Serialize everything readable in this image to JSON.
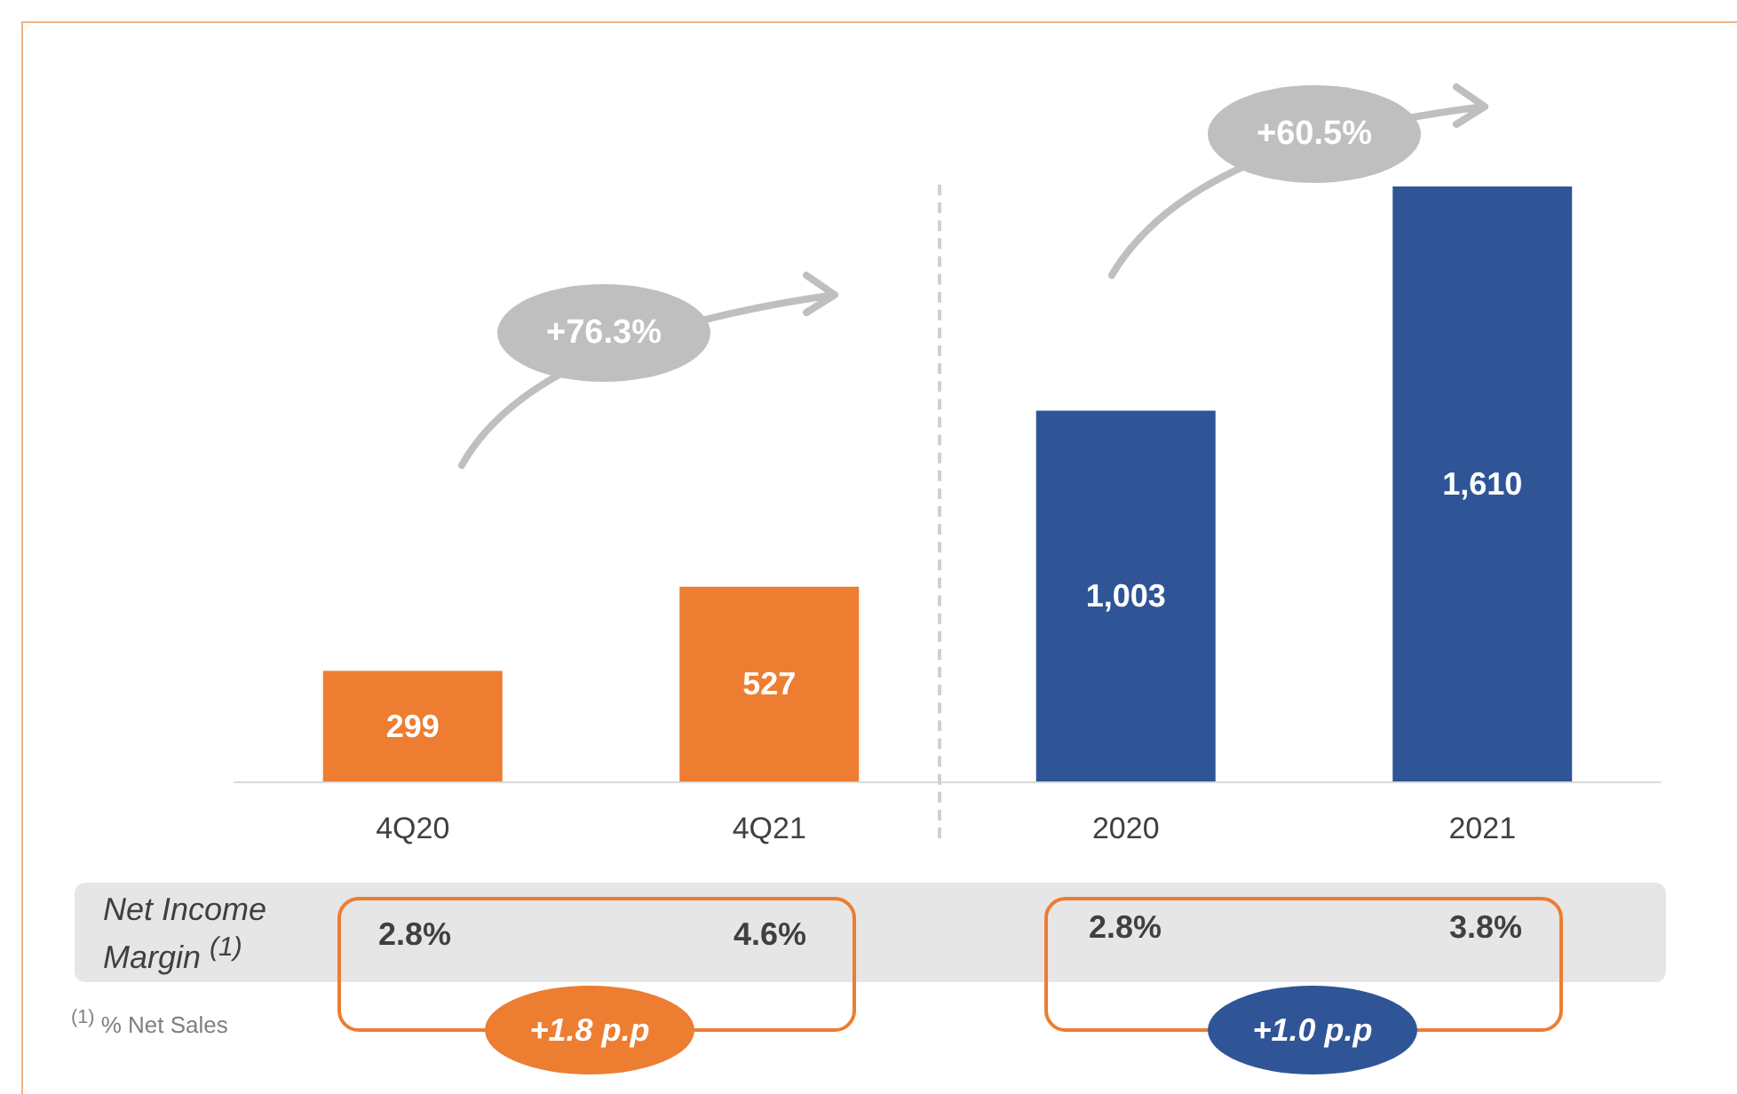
{
  "chart_data": {
    "type": "bar",
    "categories": [
      "4Q20",
      "4Q21",
      "2020",
      "2021"
    ],
    "values": [
      299,
      527,
      1003,
      1610
    ],
    "colors": [
      "#ed7d31",
      "#ed7d31",
      "#2f5597",
      "#2f5597"
    ],
    "value_labels": [
      "299",
      "527",
      "1,003",
      "1,610"
    ],
    "annotations": [
      "+76.3%",
      "+60.5%",
      "Net Income Margin $^{(1)}$",
      "2.8%",
      "4.6%",
      "2.8%",
      "3.8%",
      "+1.8 p.p",
      "+1.0 p.p",
      "$^{(1)}$ % Net Sales"
    ]
  }
}
